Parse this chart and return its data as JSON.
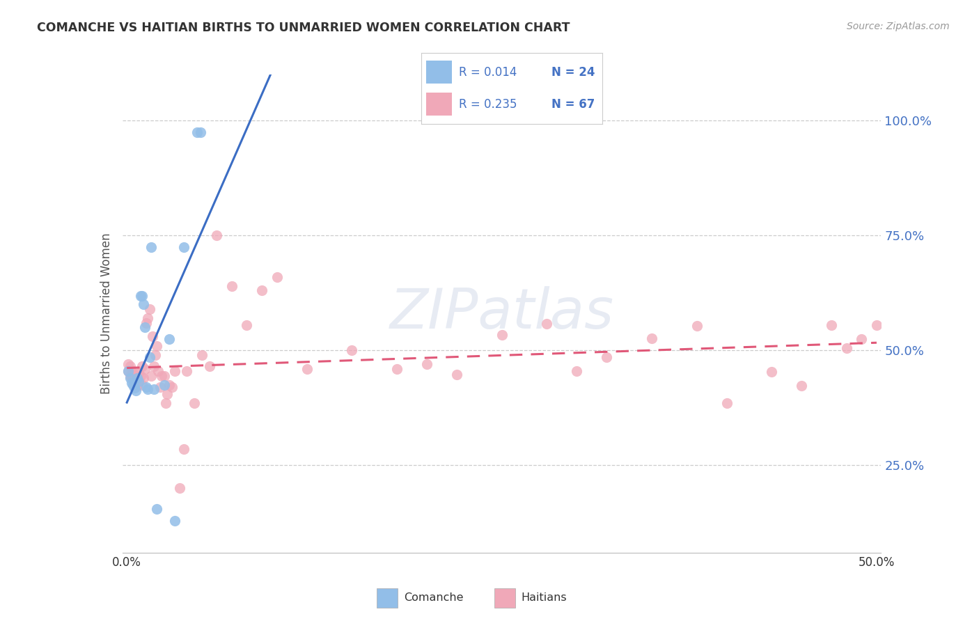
{
  "title": "COMANCHE VS HAITIAN BIRTHS TO UNMARRIED WOMEN CORRELATION CHART",
  "source": "Source: ZipAtlas.com",
  "ylabel": "Births to Unmarried Women",
  "watermark_line1": "ZIP",
  "watermark_line2": "atlas",
  "comanche_color": "#92BEE8",
  "haitian_color": "#F0A8B8",
  "comanche_line_color": "#3B6DC4",
  "haitian_line_color": "#E05878",
  "ytick_vals": [
    0.25,
    0.5,
    0.75,
    1.0
  ],
  "ytick_labels": [
    "25.0%",
    "50.0%",
    "75.0%",
    "100.0%"
  ],
  "xlim": [
    -0.003,
    0.503
  ],
  "ylim": [
    0.06,
    1.1
  ],
  "comanche_x": [
    0.001,
    0.002,
    0.003,
    0.004,
    0.005,
    0.006,
    0.007,
    0.008,
    0.009,
    0.01,
    0.011,
    0.012,
    0.013,
    0.014,
    0.015,
    0.016,
    0.018,
    0.02,
    0.025,
    0.028,
    0.032,
    0.038,
    0.047,
    0.049
  ],
  "comanche_y": [
    0.455,
    0.44,
    0.43,
    0.425,
    0.418,
    0.412,
    0.44,
    0.432,
    0.618,
    0.618,
    0.6,
    0.55,
    0.42,
    0.415,
    0.485,
    0.725,
    0.415,
    0.155,
    0.425,
    0.525,
    0.13,
    0.725,
    0.975,
    0.975
  ],
  "haitian_x": [
    0.001,
    0.001,
    0.002,
    0.002,
    0.003,
    0.003,
    0.004,
    0.004,
    0.005,
    0.005,
    0.006,
    0.006,
    0.007,
    0.007,
    0.008,
    0.008,
    0.009,
    0.01,
    0.01,
    0.011,
    0.012,
    0.013,
    0.014,
    0.015,
    0.016,
    0.017,
    0.018,
    0.019,
    0.02,
    0.021,
    0.022,
    0.023,
    0.025,
    0.026,
    0.027,
    0.028,
    0.03,
    0.032,
    0.035,
    0.038,
    0.04,
    0.045,
    0.05,
    0.055,
    0.06,
    0.07,
    0.08,
    0.09,
    0.1,
    0.12,
    0.15,
    0.18,
    0.2,
    0.22,
    0.25,
    0.28,
    0.3,
    0.32,
    0.35,
    0.38,
    0.4,
    0.43,
    0.45,
    0.47,
    0.48,
    0.49,
    0.5
  ],
  "haitian_y": [
    0.455,
    0.47,
    0.445,
    0.465,
    0.44,
    0.455,
    0.44,
    0.455,
    0.43,
    0.445,
    0.42,
    0.438,
    0.425,
    0.44,
    0.435,
    0.45,
    0.445,
    0.465,
    0.425,
    0.44,
    0.46,
    0.56,
    0.57,
    0.59,
    0.445,
    0.53,
    0.465,
    0.49,
    0.51,
    0.455,
    0.42,
    0.445,
    0.445,
    0.385,
    0.405,
    0.425,
    0.42,
    0.455,
    0.2,
    0.285,
    0.455,
    0.385,
    0.49,
    0.465,
    0.75,
    0.64,
    0.555,
    0.63,
    0.66,
    0.46,
    0.5,
    0.46,
    0.47,
    0.448,
    0.534,
    0.558,
    0.455,
    0.486,
    0.526,
    0.553,
    0.385,
    0.453,
    0.423,
    0.555,
    0.505,
    0.525,
    0.555
  ]
}
